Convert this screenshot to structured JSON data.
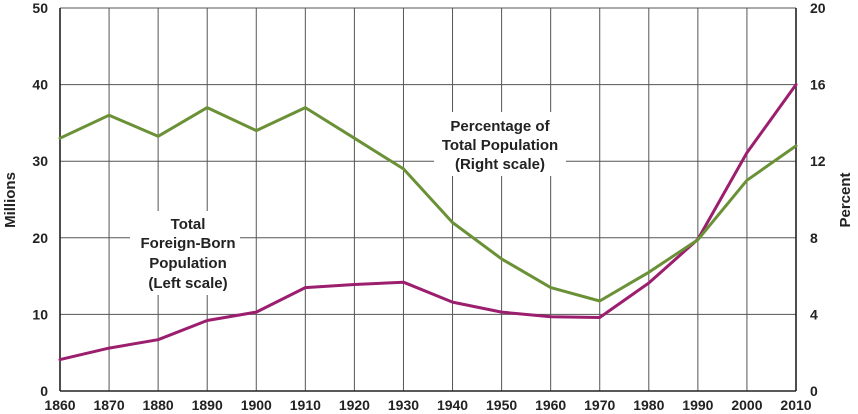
{
  "chart_data": {
    "type": "line",
    "x": [
      1860,
      1870,
      1880,
      1890,
      1900,
      1910,
      1920,
      1930,
      1940,
      1950,
      1960,
      1970,
      1980,
      1990,
      2000,
      2010
    ],
    "x_ticks": [
      "1860",
      "1870",
      "1880",
      "1890",
      "1900",
      "1910",
      "1920",
      "1930",
      "1940",
      "1950",
      "1960",
      "1970",
      "1980",
      "1990",
      "2000",
      "2010"
    ],
    "xlim": [
      1860,
      2010
    ],
    "y_left": {
      "label": "Millions",
      "ylim": [
        0,
        50
      ],
      "ticks": [
        "0",
        "10",
        "20",
        "30",
        "40",
        "50"
      ]
    },
    "y_right": {
      "label": "Percent",
      "ylim": [
        0,
        20
      ],
      "ticks": [
        "0",
        "4",
        "8",
        "12",
        "16",
        "20"
      ]
    },
    "grid": true,
    "series": [
      {
        "axis": "left",
        "color": "#9b1f6e",
        "values": [
          4.1,
          5.6,
          6.7,
          9.2,
          10.3,
          13.5,
          13.9,
          14.2,
          11.6,
          10.3,
          9.7,
          9.6,
          14.1,
          19.8,
          31.1,
          40.0
        ],
        "annotation": [
          "Total",
          "Foreign-Born",
          "Population",
          "(Left scale)"
        ]
      },
      {
        "axis": "right",
        "color": "#6b9137",
        "values": [
          13.2,
          14.4,
          13.3,
          14.8,
          13.6,
          14.8,
          13.2,
          11.6,
          8.8,
          6.9,
          5.4,
          4.7,
          6.2,
          7.9,
          11.0,
          12.8
        ],
        "annotation": [
          "Percentage of",
          "Total Population",
          "(Right scale)"
        ]
      }
    ]
  }
}
